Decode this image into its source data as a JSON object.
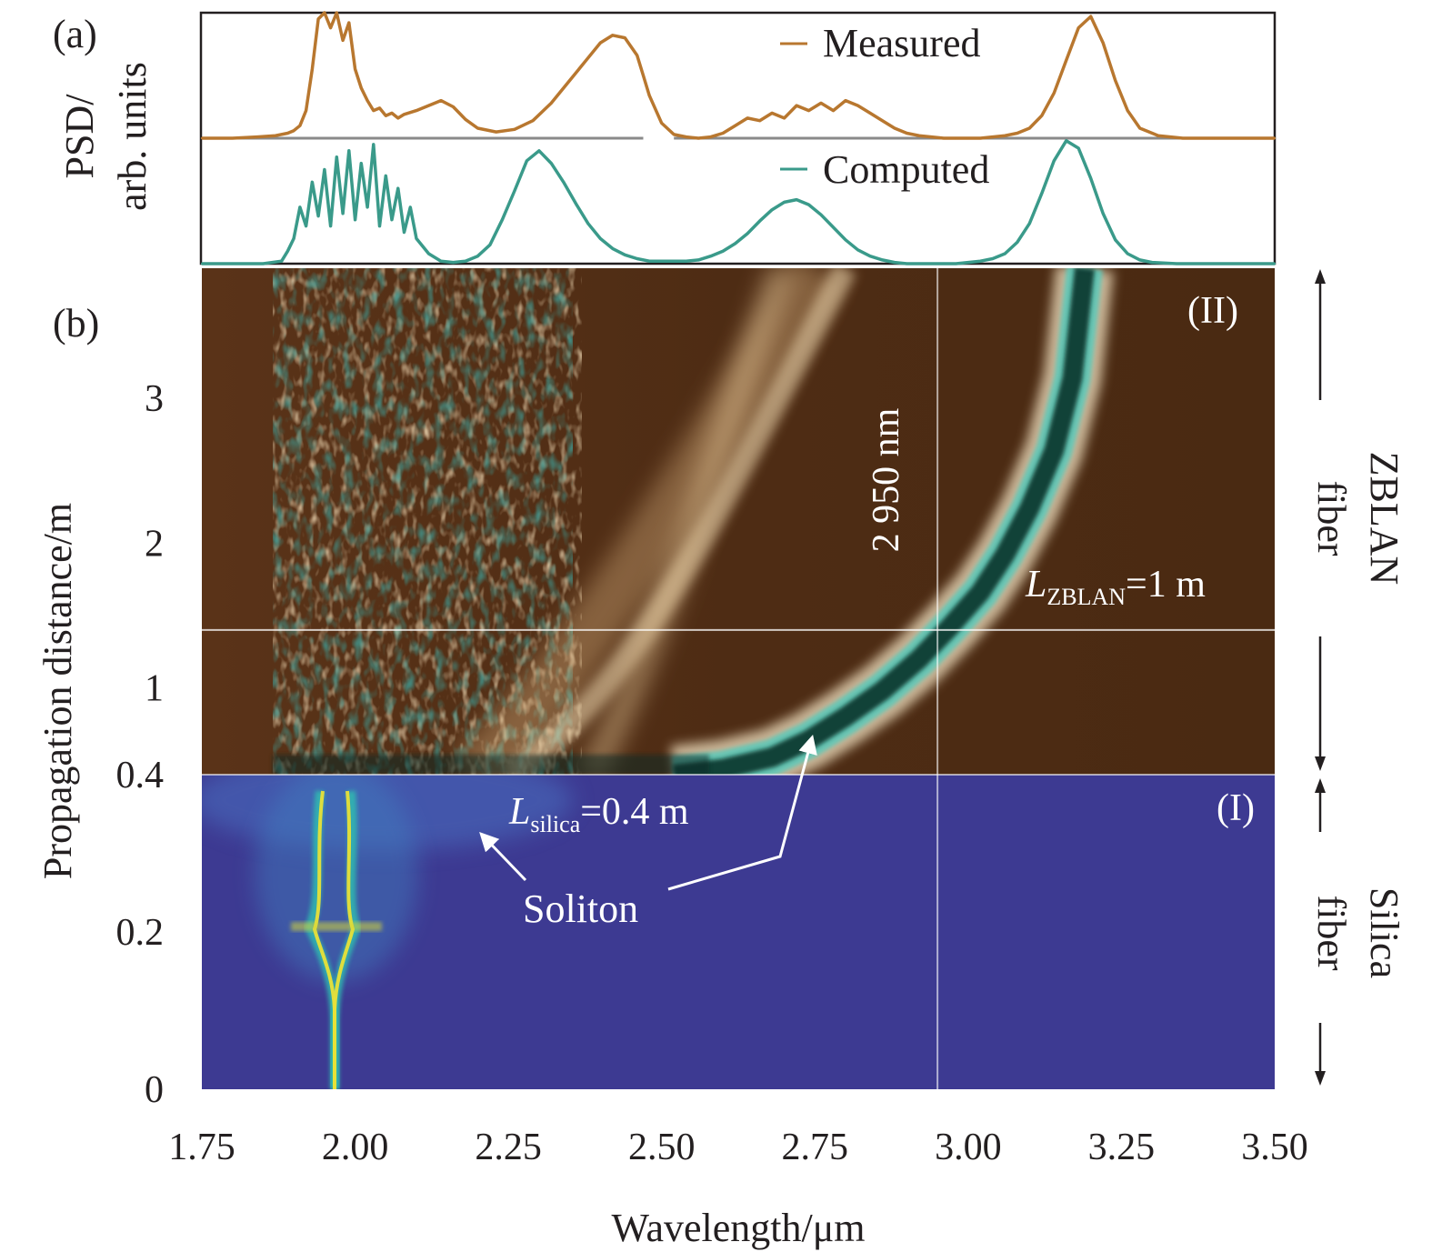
{
  "chart_data": [
    {
      "panel": "(a)",
      "type": "line",
      "title": "",
      "ylabel_line1": "PSD/",
      "ylabel_line2": "arb. units",
      "xlabel": "",
      "xlim": [
        1.75,
        3.5
      ],
      "grid": false,
      "legend_placement": "top-right",
      "series": [
        {
          "name": "Measured",
          "color": "#b8772f",
          "x": [
            1.75,
            1.8,
            1.84,
            1.87,
            1.89,
            1.9,
            1.91,
            1.92,
            1.93,
            1.94,
            1.95,
            1.96,
            1.97,
            1.98,
            1.99,
            2.0,
            2.01,
            2.02,
            2.03,
            2.04,
            2.05,
            2.06,
            2.07,
            2.08,
            2.1,
            2.12,
            2.14,
            2.16,
            2.18,
            2.2,
            2.23,
            2.26,
            2.29,
            2.32,
            2.35,
            2.38,
            2.4,
            2.42,
            2.44,
            2.46,
            2.47,
            2.48,
            2.5,
            2.52,
            2.54,
            2.56,
            2.58,
            2.6,
            2.62,
            2.64,
            2.66,
            2.68,
            2.7,
            2.72,
            2.74,
            2.76,
            2.78,
            2.8,
            2.82,
            2.84,
            2.86,
            2.88,
            2.9,
            2.92,
            2.94,
            2.96,
            2.98,
            3.0,
            3.02,
            3.04,
            3.06,
            3.08,
            3.1,
            3.12,
            3.14,
            3.16,
            3.18,
            3.2,
            3.22,
            3.24,
            3.26,
            3.28,
            3.31,
            3.35,
            3.4,
            3.45,
            3.5
          ],
          "y": [
            0.0,
            0.0,
            0.01,
            0.02,
            0.04,
            0.06,
            0.1,
            0.22,
            0.55,
            0.95,
            1.0,
            0.88,
            1.0,
            0.78,
            0.92,
            0.55,
            0.4,
            0.3,
            0.22,
            0.24,
            0.18,
            0.2,
            0.16,
            0.19,
            0.22,
            0.26,
            0.3,
            0.25,
            0.15,
            0.08,
            0.05,
            0.07,
            0.14,
            0.28,
            0.46,
            0.64,
            0.76,
            0.82,
            0.8,
            0.66,
            0.5,
            0.34,
            0.12,
            0.03,
            0.01,
            0.0,
            0.01,
            0.04,
            0.1,
            0.16,
            0.14,
            0.2,
            0.16,
            0.26,
            0.22,
            0.28,
            0.22,
            0.3,
            0.26,
            0.2,
            0.14,
            0.08,
            0.04,
            0.02,
            0.01,
            0.0,
            0.0,
            0.0,
            0.0,
            0.01,
            0.02,
            0.04,
            0.08,
            0.18,
            0.36,
            0.62,
            0.88,
            0.97,
            0.76,
            0.46,
            0.22,
            0.08,
            0.02,
            0.0,
            0.0,
            0.0,
            0.0
          ]
        },
        {
          "name": "Computed",
          "color": "#3a9a8a",
          "x": [
            1.75,
            1.8,
            1.85,
            1.88,
            1.89,
            1.9,
            1.91,
            1.92,
            1.93,
            1.94,
            1.95,
            1.96,
            1.97,
            1.98,
            1.99,
            2.0,
            2.01,
            2.02,
            2.03,
            2.04,
            2.05,
            2.06,
            2.07,
            2.08,
            2.09,
            2.1,
            2.12,
            2.14,
            2.16,
            2.18,
            2.2,
            2.22,
            2.24,
            2.26,
            2.28,
            2.3,
            2.32,
            2.34,
            2.36,
            2.38,
            2.4,
            2.42,
            2.44,
            2.46,
            2.48,
            2.5,
            2.52,
            2.54,
            2.56,
            2.58,
            2.6,
            2.62,
            2.64,
            2.66,
            2.68,
            2.7,
            2.72,
            2.74,
            2.76,
            2.78,
            2.8,
            2.82,
            2.84,
            2.86,
            2.88,
            2.9,
            2.92,
            2.94,
            2.96,
            2.98,
            3.0,
            3.02,
            3.04,
            3.06,
            3.08,
            3.1,
            3.12,
            3.14,
            3.16,
            3.18,
            3.2,
            3.22,
            3.24,
            3.26,
            3.28,
            3.3,
            3.34,
            3.4,
            3.5
          ],
          "y": [
            0.0,
            0.0,
            0.0,
            0.02,
            0.1,
            0.2,
            0.45,
            0.3,
            0.65,
            0.38,
            0.75,
            0.3,
            0.85,
            0.4,
            0.9,
            0.35,
            0.8,
            0.45,
            0.95,
            0.3,
            0.7,
            0.35,
            0.6,
            0.25,
            0.45,
            0.2,
            0.08,
            0.02,
            0.01,
            0.02,
            0.06,
            0.15,
            0.35,
            0.58,
            0.82,
            0.9,
            0.8,
            0.65,
            0.48,
            0.32,
            0.2,
            0.12,
            0.07,
            0.04,
            0.02,
            0.02,
            0.02,
            0.02,
            0.03,
            0.06,
            0.1,
            0.16,
            0.24,
            0.34,
            0.43,
            0.49,
            0.51,
            0.47,
            0.39,
            0.29,
            0.19,
            0.11,
            0.06,
            0.03,
            0.01,
            0.0,
            0.0,
            0.0,
            0.0,
            0.0,
            0.01,
            0.02,
            0.04,
            0.08,
            0.17,
            0.32,
            0.56,
            0.82,
            0.98,
            0.92,
            0.68,
            0.4,
            0.19,
            0.08,
            0.03,
            0.01,
            0.0,
            0.0,
            0.0
          ]
        }
      ]
    },
    {
      "panel": "(b)",
      "type": "heatmap",
      "title": "",
      "xlabel": "Wavelength/μm",
      "ylabel": "Propagation distance/m",
      "xlim": [
        1.75,
        3.5
      ],
      "ylim": [
        0,
        3.9
      ],
      "xticks": [
        1.75,
        2.0,
        2.25,
        2.5,
        2.75,
        3.0,
        3.25,
        3.5
      ],
      "xtick_labels": [
        "1.75",
        "2.00",
        "2.25",
        "2.50",
        "2.75",
        "3.00",
        "3.25",
        "3.50"
      ],
      "yticks": [
        0,
        0.2,
        0.4,
        1,
        2,
        3
      ],
      "ytick_labels": [
        "0",
        "0.2",
        "0.4",
        "1",
        "2",
        "3"
      ],
      "grid": false,
      "regions": [
        {
          "name": "Silica fiber",
          "label": "(I)",
          "z_range": [
            0,
            0.4
          ],
          "colormap": "blue-yellow"
        },
        {
          "name": "ZBLAN fiber",
          "label": "(II)",
          "z_range": [
            0.4,
            3.9
          ],
          "colormap": "brown-cyan"
        }
      ],
      "vertical_line_um": 2.95,
      "horizontal_line_m": 1.4,
      "soliton_trajectory": {
        "wavelength_um": [
          2.52,
          2.6,
          2.68,
          2.74,
          2.8,
          2.86,
          2.92,
          2.97,
          3.02,
          3.06,
          3.1,
          3.14,
          3.17,
          3.19
        ],
        "distance_m": [
          0.4,
          0.44,
          0.52,
          0.64,
          0.8,
          0.98,
          1.2,
          1.42,
          1.66,
          1.92,
          2.24,
          2.64,
          3.14,
          3.9
        ]
      },
      "annotations": {
        "marker_value": "2 950 nm",
        "zblan_length": "=1 m",
        "zblan_symbol": "L",
        "zblan_subscript": "ZBLAN",
        "silica_length": "=0.4 m",
        "silica_symbol": "L",
        "silica_subscript": "silica",
        "soliton": "Soliton",
        "region_I": "(I)",
        "region_II": "(II)",
        "zblan_side_line1": "ZBLAN",
        "zblan_side_line2": "fiber",
        "silica_side_line1": "Silica",
        "silica_side_line2": "fiber"
      }
    }
  ],
  "labels": {
    "panel_a": "(a)",
    "panel_b": "(b)",
    "legend_measured": "Measured",
    "legend_computed": "Computed"
  }
}
